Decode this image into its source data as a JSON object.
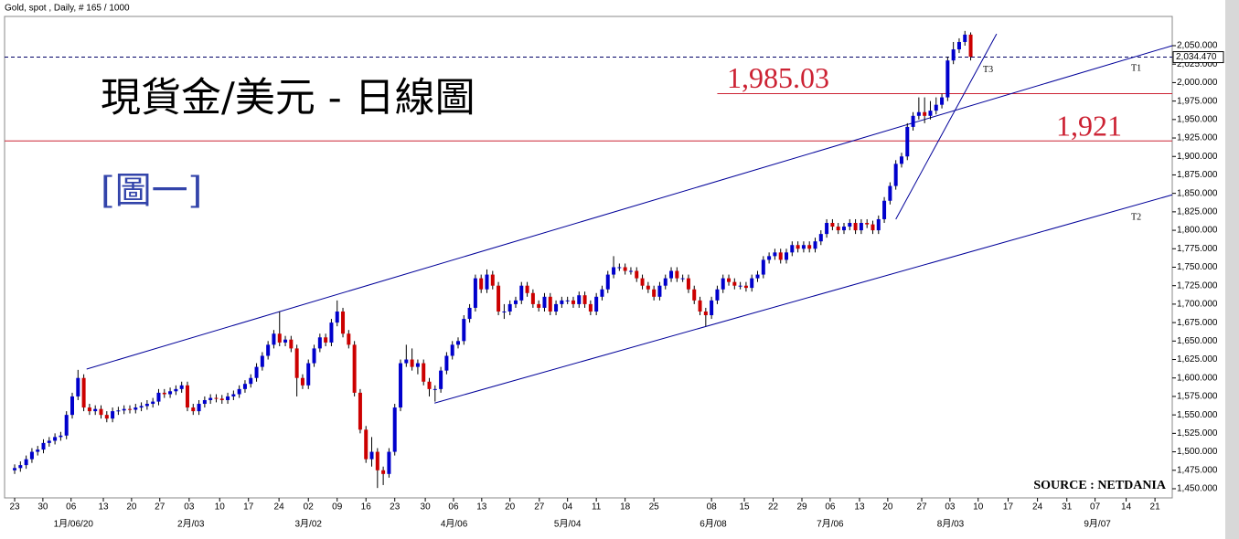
{
  "chart_data": {
    "type": "candlestick",
    "header": "Gold, spot , Daily, # 165 / 1000",
    "title": "現貨金/美元 - 日線圖",
    "subtitle": "[圖一]",
    "source": "SOURCE : NETDANIA",
    "up_color": "#0000cc",
    "down_color": "#cc0000",
    "xlim": [
      -1.75,
      201
    ],
    "ylim": [
      1437.6,
      2089.6
    ],
    "xticks": [
      {
        "value": 0,
        "label": "23"
      },
      {
        "value": 4.9,
        "label": "30"
      },
      {
        "value": 9.8,
        "label": "06"
      },
      {
        "value": 15.4,
        "label": "13"
      },
      {
        "value": 20.3,
        "label": "20"
      },
      {
        "value": 25.2,
        "label": "27"
      },
      {
        "value": 30.3,
        "label": "03"
      },
      {
        "value": 35.6,
        "label": "10"
      },
      {
        "value": 40.6,
        "label": "17"
      },
      {
        "value": 45.9,
        "label": "24"
      },
      {
        "value": 51,
        "label": "02"
      },
      {
        "value": 56,
        "label": "09"
      },
      {
        "value": 61,
        "label": "16"
      },
      {
        "value": 66,
        "label": "23"
      },
      {
        "value": 71.3,
        "label": "30"
      },
      {
        "value": 76.2,
        "label": "06"
      },
      {
        "value": 81.1,
        "label": "13"
      },
      {
        "value": 86,
        "label": "20"
      },
      {
        "value": 91.1,
        "label": "27"
      },
      {
        "value": 96,
        "label": "04"
      },
      {
        "value": 101,
        "label": "11"
      },
      {
        "value": 106,
        "label": "18"
      },
      {
        "value": 111,
        "label": "25"
      },
      {
        "value": 121,
        "label": "08"
      },
      {
        "value": 126.7,
        "label": "15"
      },
      {
        "value": 131.7,
        "label": "22"
      },
      {
        "value": 136.7,
        "label": "29"
      },
      {
        "value": 141.6,
        "label": "06"
      },
      {
        "value": 146.7,
        "label": "13"
      },
      {
        "value": 151.6,
        "label": "20"
      },
      {
        "value": 157.5,
        "label": "27"
      },
      {
        "value": 162.4,
        "label": "03"
      },
      {
        "value": 167.3,
        "label": "10"
      },
      {
        "value": 172.5,
        "label": "17"
      },
      {
        "value": 177.6,
        "label": "24"
      },
      {
        "value": 182.7,
        "label": "31"
      },
      {
        "value": 187.6,
        "label": "07"
      },
      {
        "value": 193,
        "label": "14"
      },
      {
        "value": 198,
        "label": "21"
      }
    ],
    "month_labels": [
      {
        "value": 10.2,
        "label": "1月/06/20"
      },
      {
        "value": 30.6,
        "label": "2月/03"
      },
      {
        "value": 51,
        "label": "3月/02"
      },
      {
        "value": 76.3,
        "label": "4月/06"
      },
      {
        "value": 96,
        "label": "5月/04"
      },
      {
        "value": 121.3,
        "label": "6月/08"
      },
      {
        "value": 141.6,
        "label": "7月/06"
      },
      {
        "value": 162.5,
        "label": "8月/03"
      },
      {
        "value": 188,
        "label": "9月/07"
      }
    ],
    "yticks": [
      {
        "value": 1450,
        "label": "1,450.000"
      },
      {
        "value": 1475,
        "label": "1,475.000"
      },
      {
        "value": 1500,
        "label": "1,500.000"
      },
      {
        "value": 1525,
        "label": "1,525.000"
      },
      {
        "value": 1550,
        "label": "1,550.000"
      },
      {
        "value": 1575,
        "label": "1,575.000"
      },
      {
        "value": 1600,
        "label": "1,600.000"
      },
      {
        "value": 1625,
        "label": "1,625.000"
      },
      {
        "value": 1650,
        "label": "1,650.000"
      },
      {
        "value": 1675,
        "label": "1,675.000"
      },
      {
        "value": 1700,
        "label": "1,700.000"
      },
      {
        "value": 1725,
        "label": "1,725.000"
      },
      {
        "value": 1750,
        "label": "1,750.000"
      },
      {
        "value": 1775,
        "label": "1,775.000"
      },
      {
        "value": 1800,
        "label": "1,800.000"
      },
      {
        "value": 1825,
        "label": "1,825.000"
      },
      {
        "value": 1850,
        "label": "1,850.000"
      },
      {
        "value": 1875,
        "label": "1,875.000"
      },
      {
        "value": 1900,
        "label": "1,900.000"
      },
      {
        "value": 1925,
        "label": "1,925.000"
      },
      {
        "value": 1950,
        "label": "1,950.000"
      },
      {
        "value": 1975,
        "label": "1,975.000"
      },
      {
        "value": 2000,
        "label": "2,000.000"
      },
      {
        "value": 2025,
        "label": "2,025.000"
      },
      {
        "value": 2050,
        "label": "2,050.000"
      }
    ],
    "current_price": {
      "value": 2034.47,
      "label": "2,034.470"
    },
    "levels": [
      {
        "value": 1985.03,
        "label": "1,985.03",
        "from": 122
      },
      {
        "value": 1921,
        "label": "1,921",
        "from": -1.75
      }
    ],
    "trendlines": [
      {
        "label": "T1",
        "points": [
          [
            12.5,
            1612
          ],
          [
            201,
            2050
          ]
        ]
      },
      {
        "label": "T2",
        "points": [
          [
            72.9,
            1566
          ],
          [
            201,
            1848
          ]
        ]
      },
      {
        "label": "T3",
        "points": [
          [
            153,
            1815
          ],
          [
            170.5,
            2066
          ]
        ]
      }
    ],
    "open": [
      1475,
      1478,
      1482,
      1490,
      1500,
      1503,
      1512,
      1515,
      1520,
      1522,
      1550,
      1575,
      1600,
      1560,
      1555,
      1558,
      1550,
      1545,
      1555,
      1556,
      1558,
      1557,
      1560,
      1562,
      1565,
      1568,
      1580,
      1578,
      1582,
      1585,
      1590,
      1560,
      1555,
      1565,
      1570,
      1573,
      1572,
      1570,
      1575,
      1578,
      1585,
      1592,
      1600,
      1615,
      1630,
      1645,
      1660,
      1648,
      1652,
      1640,
      1600,
      1590,
      1620,
      1640,
      1655,
      1648,
      1675,
      1690,
      1660,
      1645,
      1580,
      1530,
      1490,
      1500,
      1475,
      1470,
      1500,
      1560,
      1620,
      1625,
      1615,
      1620,
      1595,
      1585,
      1585,
      1610,
      1630,
      1645,
      1650,
      1680,
      1695,
      1735,
      1720,
      1740,
      1725,
      1690,
      1690,
      1700,
      1705,
      1725,
      1715,
      1700,
      1695,
      1710,
      1690,
      1700,
      1705,
      1705,
      1700,
      1712,
      1700,
      1690,
      1710,
      1720,
      1740,
      1750,
      1750,
      1745,
      1745,
      1735,
      1725,
      1720,
      1710,
      1725,
      1735,
      1745,
      1735,
      1735,
      1720,
      1705,
      1690,
      1685,
      1705,
      1720,
      1735,
      1730,
      1725,
      1725,
      1722,
      1735,
      1740,
      1760,
      1765,
      1770,
      1760,
      1770,
      1780,
      1775,
      1780,
      1775,
      1785,
      1795,
      1810,
      1805,
      1800,
      1805,
      1810,
      1800,
      1810,
      1808,
      1800,
      1815,
      1840,
      1860,
      1890,
      1900,
      1940,
      1955,
      1960,
      1955,
      1962,
      1970,
      1980,
      2030,
      2045,
      2055,
      2065
    ],
    "high": [
      1483,
      1487,
      1495,
      1505,
      1508,
      1517,
      1520,
      1525,
      1527,
      1555,
      1580,
      1611,
      1605,
      1565,
      1563,
      1563,
      1555,
      1560,
      1561,
      1563,
      1563,
      1565,
      1567,
      1570,
      1573,
      1585,
      1585,
      1587,
      1590,
      1595,
      1595,
      1565,
      1570,
      1575,
      1578,
      1578,
      1577,
      1580,
      1583,
      1590,
      1597,
      1605,
      1620,
      1635,
      1650,
      1665,
      1690,
      1657,
      1657,
      1645,
      1605,
      1625,
      1645,
      1660,
      1660,
      1680,
      1705,
      1695,
      1665,
      1650,
      1585,
      1535,
      1520,
      1505,
      1480,
      1505,
      1565,
      1625,
      1645,
      1640,
      1625,
      1625,
      1600,
      1590,
      1615,
      1635,
      1650,
      1655,
      1685,
      1700,
      1740,
      1740,
      1747,
      1745,
      1730,
      1700,
      1705,
      1710,
      1730,
      1730,
      1720,
      1705,
      1715,
      1715,
      1705,
      1710,
      1710,
      1710,
      1717,
      1717,
      1705,
      1715,
      1725,
      1745,
      1765,
      1755,
      1755,
      1750,
      1750,
      1740,
      1730,
      1725,
      1730,
      1740,
      1750,
      1750,
      1740,
      1740,
      1725,
      1710,
      1695,
      1710,
      1725,
      1740,
      1740,
      1735,
      1730,
      1730,
      1740,
      1745,
      1765,
      1770,
      1775,
      1775,
      1775,
      1785,
      1785,
      1785,
      1785,
      1790,
      1800,
      1815,
      1815,
      1810,
      1810,
      1815,
      1815,
      1815,
      1815,
      1813,
      1820,
      1845,
      1865,
      1895,
      1905,
      1945,
      1960,
      1980,
      1980,
      1975,
      1980,
      1985,
      2035,
      2055,
      2060,
      2070,
      2068
    ],
    "low": [
      1470,
      1473,
      1477,
      1485,
      1495,
      1498,
      1507,
      1510,
      1515,
      1517,
      1545,
      1570,
      1555,
      1550,
      1550,
      1545,
      1540,
      1540,
      1550,
      1551,
      1552,
      1552,
      1555,
      1557,
      1560,
      1563,
      1573,
      1573,
      1577,
      1580,
      1555,
      1550,
      1550,
      1560,
      1565,
      1567,
      1565,
      1565,
      1570,
      1573,
      1580,
      1587,
      1595,
      1610,
      1625,
      1640,
      1643,
      1643,
      1635,
      1575,
      1585,
      1585,
      1615,
      1635,
      1643,
      1643,
      1670,
      1655,
      1640,
      1575,
      1525,
      1485,
      1480,
      1451,
      1455,
      1465,
      1495,
      1555,
      1615,
      1610,
      1605,
      1590,
      1575,
      1568,
      1580,
      1605,
      1625,
      1640,
      1645,
      1675,
      1690,
      1715,
      1715,
      1720,
      1685,
      1680,
      1685,
      1695,
      1700,
      1710,
      1695,
      1690,
      1690,
      1685,
      1685,
      1695,
      1700,
      1695,
      1695,
      1695,
      1685,
      1685,
      1705,
      1715,
      1735,
      1745,
      1740,
      1740,
      1730,
      1720,
      1715,
      1705,
      1705,
      1720,
      1730,
      1730,
      1730,
      1715,
      1700,
      1685,
      1670,
      1680,
      1700,
      1715,
      1725,
      1720,
      1720,
      1717,
      1717,
      1730,
      1735,
      1755,
      1760,
      1755,
      1755,
      1765,
      1770,
      1770,
      1770,
      1770,
      1780,
      1790,
      1800,
      1795,
      1795,
      1800,
      1795,
      1795,
      1803,
      1795,
      1795,
      1810,
      1835,
      1855,
      1885,
      1895,
      1935,
      1950,
      1945,
      1950,
      1957,
      1965,
      1975,
      2025,
      2040,
      2050,
      2030
    ],
    "close": [
      1478,
      1482,
      1490,
      1500,
      1503,
      1512,
      1515,
      1520,
      1522,
      1550,
      1575,
      1600,
      1560,
      1555,
      1558,
      1550,
      1545,
      1555,
      1556,
      1558,
      1557,
      1560,
      1562,
      1565,
      1568,
      1580,
      1578,
      1582,
      1585,
      1590,
      1560,
      1555,
      1565,
      1570,
      1573,
      1572,
      1570,
      1575,
      1578,
      1585,
      1592,
      1600,
      1615,
      1630,
      1645,
      1660,
      1648,
      1652,
      1640,
      1600,
      1590,
      1620,
      1640,
      1655,
      1648,
      1675,
      1690,
      1660,
      1645,
      1580,
      1530,
      1490,
      1500,
      1475,
      1470,
      1500,
      1560,
      1620,
      1625,
      1615,
      1620,
      1595,
      1585,
      1585,
      1610,
      1630,
      1645,
      1650,
      1680,
      1695,
      1735,
      1720,
      1740,
      1725,
      1690,
      1690,
      1700,
      1705,
      1725,
      1715,
      1700,
      1695,
      1710,
      1690,
      1700,
      1705,
      1705,
      1700,
      1712,
      1700,
      1690,
      1710,
      1720,
      1740,
      1750,
      1750,
      1745,
      1745,
      1735,
      1725,
      1720,
      1710,
      1725,
      1735,
      1745,
      1735,
      1735,
      1720,
      1705,
      1690,
      1685,
      1705,
      1720,
      1735,
      1730,
      1725,
      1725,
      1722,
      1735,
      1740,
      1760,
      1765,
      1770,
      1760,
      1770,
      1780,
      1775,
      1780,
      1775,
      1785,
      1795,
      1810,
      1805,
      1800,
      1805,
      1810,
      1800,
      1810,
      1808,
      1800,
      1815,
      1840,
      1860,
      1890,
      1900,
      1940,
      1955,
      1960,
      1955,
      1962,
      1970,
      1980,
      2030,
      2045,
      2055,
      2065,
      2035
    ]
  }
}
